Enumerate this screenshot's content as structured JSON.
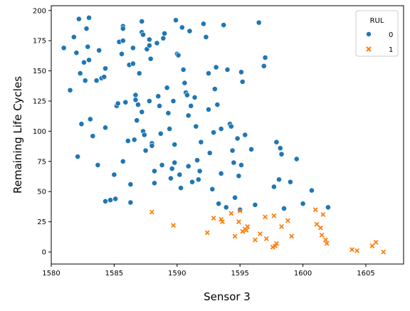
{
  "chart_data": {
    "type": "scatter",
    "xlabel": "Sensor 3",
    "ylabel": "Remaining Life Cycles",
    "xlim": [
      1580,
      1608
    ],
    "ylim": [
      -10,
      204
    ],
    "xticks": [
      1580,
      1585,
      1590,
      1595,
      1600,
      1605
    ],
    "yticks": [
      0,
      25,
      50,
      75,
      100,
      125,
      150,
      175,
      200
    ],
    "grid": false,
    "legend": {
      "title": "RUL",
      "position": "top-right"
    },
    "series": [
      {
        "name": "0",
        "marker": "circle",
        "color": "#1f77b4",
        "points": [
          [
            1581.0,
            169
          ],
          [
            1581.5,
            134
          ],
          [
            1581.8,
            178
          ],
          [
            1582.0,
            165
          ],
          [
            1582.1,
            79
          ],
          [
            1582.2,
            193
          ],
          [
            1582.3,
            148
          ],
          [
            1582.4,
            106
          ],
          [
            1582.6,
            157
          ],
          [
            1582.7,
            142
          ],
          [
            1582.8,
            185
          ],
          [
            1582.9,
            170
          ],
          [
            1583.0,
            194
          ],
          [
            1583.0,
            159
          ],
          [
            1583.1,
            110
          ],
          [
            1583.3,
            96
          ],
          [
            1583.6,
            142
          ],
          [
            1583.7,
            72
          ],
          [
            1583.8,
            167
          ],
          [
            1584.0,
            144
          ],
          [
            1584.2,
            145
          ],
          [
            1584.3,
            152
          ],
          [
            1584.3,
            103
          ],
          [
            1584.3,
            42
          ],
          [
            1584.7,
            43
          ],
          [
            1585.0,
            64
          ],
          [
            1585.1,
            44
          ],
          [
            1585.2,
            121
          ],
          [
            1585.3,
            123
          ],
          [
            1585.4,
            174
          ],
          [
            1585.6,
            164
          ],
          [
            1585.7,
            187
          ],
          [
            1585.7,
            185
          ],
          [
            1585.7,
            175
          ],
          [
            1585.7,
            75
          ],
          [
            1585.9,
            124
          ],
          [
            1586.1,
            92
          ],
          [
            1586.2,
            155
          ],
          [
            1586.3,
            56
          ],
          [
            1586.3,
            41
          ],
          [
            1586.5,
            169
          ],
          [
            1586.5,
            156
          ],
          [
            1586.6,
            93
          ],
          [
            1586.7,
            130
          ],
          [
            1586.7,
            126
          ],
          [
            1586.8,
            109
          ],
          [
            1586.9,
            122
          ],
          [
            1587.0,
            148
          ],
          [
            1587.2,
            191
          ],
          [
            1587.2,
            182
          ],
          [
            1587.3,
            180
          ],
          [
            1587.2,
            116
          ],
          [
            1587.3,
            100
          ],
          [
            1587.4,
            97
          ],
          [
            1587.5,
            84
          ],
          [
            1587.6,
            168
          ],
          [
            1587.8,
            176
          ],
          [
            1587.8,
            171
          ],
          [
            1587.9,
            160
          ],
          [
            1587.8,
            125
          ],
          [
            1588.0,
            90
          ],
          [
            1588.0,
            88
          ],
          [
            1588.2,
            67
          ],
          [
            1588.2,
            57
          ],
          [
            1588.4,
            173
          ],
          [
            1588.5,
            129
          ],
          [
            1588.6,
            121
          ],
          [
            1588.7,
            98
          ],
          [
            1588.8,
            72
          ],
          [
            1588.9,
            177
          ],
          [
            1589.0,
            181
          ],
          [
            1589.2,
            136
          ],
          [
            1589.3,
            115
          ],
          [
            1589.4,
            102
          ],
          [
            1589.5,
            61
          ],
          [
            1589.6,
            69
          ],
          [
            1589.7,
            125
          ],
          [
            1589.8,
            89
          ],
          [
            1589.8,
            74
          ],
          [
            1589.9,
            192
          ],
          [
            1590.0,
            164
          ],
          [
            1590.1,
            163
          ],
          [
            1590.2,
            64
          ],
          [
            1590.3,
            53
          ],
          [
            1590.4,
            186
          ],
          [
            1590.5,
            151
          ],
          [
            1590.6,
            140
          ],
          [
            1590.7,
            132
          ],
          [
            1590.8,
            130
          ],
          [
            1590.9,
            71
          ],
          [
            1590.9,
            113
          ],
          [
            1591.0,
            183
          ],
          [
            1591.1,
            121
          ],
          [
            1591.2,
            58
          ],
          [
            1591.4,
            128
          ],
          [
            1591.5,
            104
          ],
          [
            1591.6,
            76
          ],
          [
            1591.7,
            60
          ],
          [
            1591.8,
            67
          ],
          [
            1591.9,
            91
          ],
          [
            1592.1,
            189
          ],
          [
            1592.3,
            178
          ],
          [
            1592.5,
            148
          ],
          [
            1592.5,
            118
          ],
          [
            1592.6,
            82
          ],
          [
            1592.8,
            52
          ],
          [
            1592.9,
            99
          ],
          [
            1593.0,
            135
          ],
          [
            1593.1,
            153
          ],
          [
            1593.2,
            122
          ],
          [
            1593.3,
            40
          ],
          [
            1593.5,
            102
          ],
          [
            1593.5,
            65
          ],
          [
            1593.7,
            188
          ],
          [
            1593.9,
            37
          ],
          [
            1594.0,
            151
          ],
          [
            1594.2,
            106
          ],
          [
            1594.3,
            104
          ],
          [
            1594.4,
            84
          ],
          [
            1594.5,
            74
          ],
          [
            1594.6,
            45
          ],
          [
            1594.8,
            94
          ],
          [
            1594.9,
            63
          ],
          [
            1595.0,
            35
          ],
          [
            1595.1,
            72
          ],
          [
            1595.1,
            149
          ],
          [
            1595.2,
            141
          ],
          [
            1595.4,
            97
          ],
          [
            1595.9,
            85
          ],
          [
            1596.2,
            39
          ],
          [
            1596.5,
            190
          ],
          [
            1596.9,
            154
          ],
          [
            1597.0,
            161
          ],
          [
            1597.7,
            54
          ],
          [
            1597.9,
            91
          ],
          [
            1598.1,
            60
          ],
          [
            1598.2,
            86
          ],
          [
            1598.3,
            81
          ],
          [
            1598.5,
            36
          ],
          [
            1599.0,
            58
          ],
          [
            1599.5,
            77
          ],
          [
            1600.0,
            40
          ],
          [
            1600.7,
            51
          ],
          [
            1602.0,
            37
          ]
        ]
      },
      {
        "name": "1",
        "marker": "x",
        "color": "#ff7f0e",
        "points": [
          [
            1588.0,
            33
          ],
          [
            1589.7,
            22
          ],
          [
            1592.4,
            16
          ],
          [
            1592.9,
            28
          ],
          [
            1593.5,
            27
          ],
          [
            1593.6,
            25
          ],
          [
            1594.3,
            32
          ],
          [
            1594.6,
            13
          ],
          [
            1594.9,
            25
          ],
          [
            1595.0,
            34
          ],
          [
            1595.2,
            17
          ],
          [
            1595.4,
            19
          ],
          [
            1595.5,
            18
          ],
          [
            1595.6,
            21
          ],
          [
            1596.2,
            10
          ],
          [
            1596.6,
            15
          ],
          [
            1597.0,
            29
          ],
          [
            1597.1,
            11
          ],
          [
            1597.6,
            4
          ],
          [
            1597.7,
            30
          ],
          [
            1597.8,
            5
          ],
          [
            1597.9,
            7
          ],
          [
            1598.3,
            21
          ],
          [
            1598.8,
            26
          ],
          [
            1599.1,
            13
          ],
          [
            1601.0,
            35
          ],
          [
            1601.1,
            23
          ],
          [
            1601.4,
            20
          ],
          [
            1601.5,
            14
          ],
          [
            1601.6,
            31
          ],
          [
            1601.8,
            10
          ],
          [
            1601.9,
            7
          ],
          [
            1603.9,
            2
          ],
          [
            1604.3,
            1
          ],
          [
            1605.5,
            5
          ],
          [
            1605.8,
            8
          ],
          [
            1606.4,
            0
          ]
        ]
      }
    ]
  }
}
